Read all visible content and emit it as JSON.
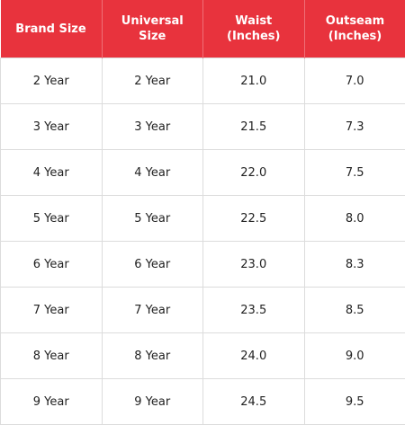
{
  "colors": {
    "header_background": "#E8333D",
    "header_text": "#FFFFFF",
    "cell_text": "#222222",
    "grid_line": "#DCDCDC"
  },
  "table": {
    "headers": [
      "Brand Size",
      "Universal Size",
      "Waist\n(Inches)",
      "Outseam\n(Inches)"
    ],
    "rows": [
      [
        "2 Year",
        "2 Year",
        "21.0",
        "7.0"
      ],
      [
        "3 Year",
        "3 Year",
        "21.5",
        "7.3"
      ],
      [
        "4 Year",
        "4 Year",
        "22.0",
        "7.5"
      ],
      [
        "5 Year",
        "5 Year",
        "22.5",
        "8.0"
      ],
      [
        "6 Year",
        "6 Year",
        "23.0",
        "8.3"
      ],
      [
        "7 Year",
        "7 Year",
        "23.5",
        "8.5"
      ],
      [
        "8 Year",
        "8 Year",
        "24.0",
        "9.0"
      ],
      [
        "9 Year",
        "9 Year",
        "24.5",
        "9.5"
      ]
    ]
  }
}
